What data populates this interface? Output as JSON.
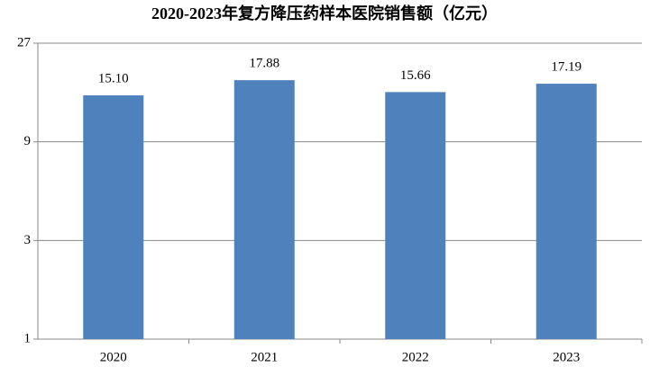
{
  "chart_data": {
    "type": "bar",
    "title": "2020-2023年复方降压药样本医院销售额（亿元）",
    "categories": [
      "2020",
      "2021",
      "2022",
      "2023"
    ],
    "values": [
      15.1,
      17.88,
      15.66,
      17.19
    ],
    "value_labels": [
      "15.10",
      "17.88",
      "15.66",
      "17.19"
    ],
    "color": "#4f81bd",
    "ylim": [
      1,
      27
    ],
    "yticks": [
      1,
      3,
      9,
      27
    ],
    "log_scale": true,
    "log_base": 3,
    "grid": true
  }
}
